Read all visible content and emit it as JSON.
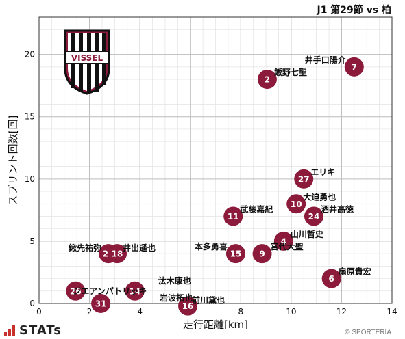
{
  "header": {
    "title": "J1 第29節 vs 柏"
  },
  "footer": {
    "brand": "STATs",
    "copyright": "© SPORTERIA"
  },
  "colors": {
    "marker": "#8b1a3b",
    "grid": "#bdbdbd",
    "axis": "#333333"
  },
  "logo_icon": "vissel-kobe-crest-icon",
  "logo_text": "VISSEL",
  "chart_data": {
    "type": "scatter",
    "xlabel": "走行距離[km]",
    "ylabel": "スプリント回数[回]",
    "xlim": [
      0,
      14
    ],
    "ylim": [
      0,
      23
    ],
    "xticks": [
      0,
      2,
      4,
      6,
      8,
      10,
      12,
      14
    ],
    "yticks": [
      0,
      5,
      10,
      15,
      20
    ],
    "grid": true,
    "points": [
      {
        "number": "7",
        "name": "井手口陽介",
        "x": 12.5,
        "y": 19
      },
      {
        "number": "2",
        "name": "飯野七聖",
        "x": 9.05,
        "y": 18
      },
      {
        "number": "27",
        "name": "エリキ",
        "x": 10.5,
        "y": 10
      },
      {
        "number": "10",
        "name": "大迫勇也",
        "x": 10.2,
        "y": 8
      },
      {
        "number": "24",
        "name": "酒井高徳",
        "x": 10.9,
        "y": 7
      },
      {
        "number": "11",
        "name": "武藤嘉紀",
        "x": 7.7,
        "y": 7
      },
      {
        "number": "4",
        "name": "山川哲史",
        "x": 9.7,
        "y": 5
      },
      {
        "number": "9",
        "name": "宮代大聖",
        "x": 8.85,
        "y": 4
      },
      {
        "number": "15",
        "name": "本多勇喜",
        "x": 7.8,
        "y": 4
      },
      {
        "number": "25",
        "name": "鍬先祐弥",
        "x": 2.75,
        "y": 4
      },
      {
        "number": "18",
        "name": "井出遥也",
        "x": 3.1,
        "y": 4
      },
      {
        "number": "6",
        "name": "扇原貴宏",
        "x": 11.6,
        "y": 2
      },
      {
        "number": "26",
        "name": "ジエアンパトリッキ",
        "x": 1.45,
        "y": 1
      },
      {
        "number": "14",
        "name": "汰木康也",
        "x": 3.8,
        "y": 1
      },
      {
        "number": "31",
        "name": "岩波拓也",
        "x": 2.45,
        "y": 0
      },
      {
        "number": "16",
        "name": "前川黛也",
        "x": 5.9,
        "y": -0.2
      }
    ]
  }
}
